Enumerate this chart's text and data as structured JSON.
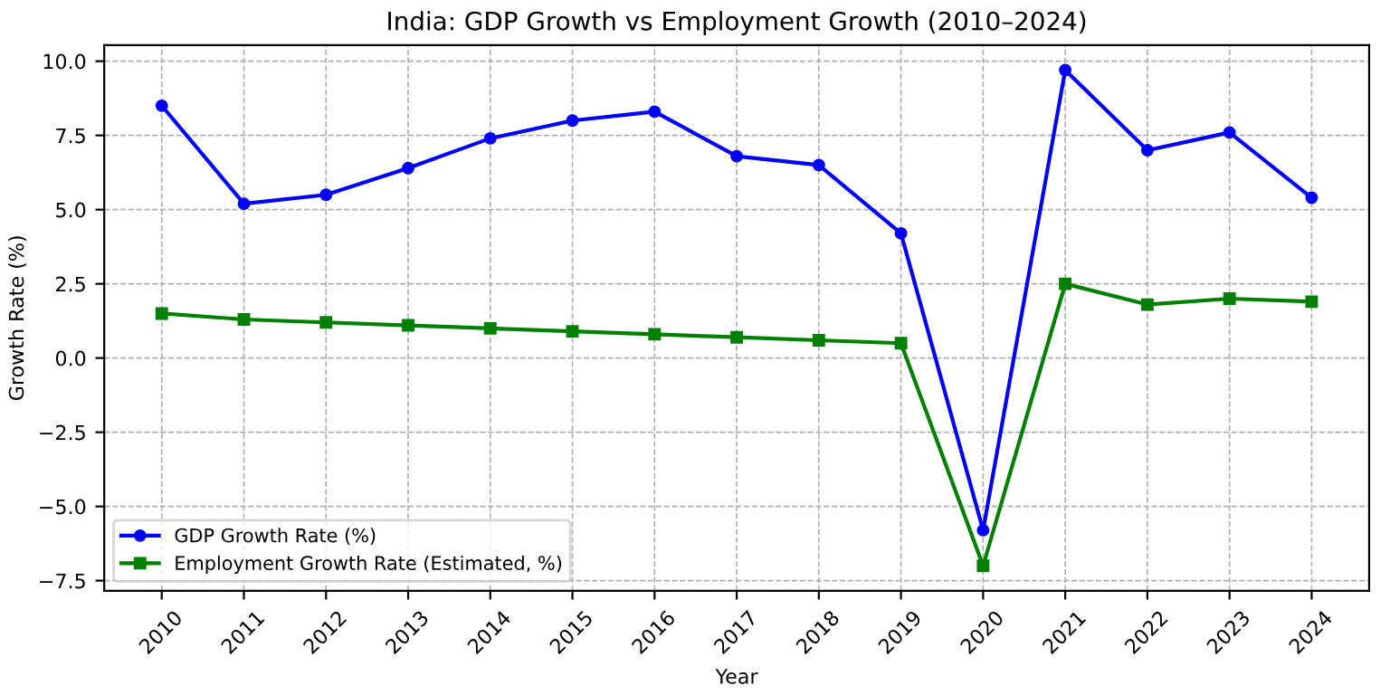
{
  "chart_data": {
    "type": "line",
    "title": "India: GDP Growth vs Employment Growth (2010–2024)",
    "xlabel": "Year",
    "ylabel": "Growth Rate (%)",
    "categories": [
      "2010",
      "2011",
      "2012",
      "2013",
      "2014",
      "2015",
      "2016",
      "2017",
      "2018",
      "2019",
      "2020",
      "2021",
      "2022",
      "2023",
      "2024"
    ],
    "series": [
      {
        "name": "GDP Growth Rate (%)",
        "color": "#0000ff",
        "marker": "circle",
        "values": [
          8.5,
          5.2,
          5.5,
          6.4,
          7.4,
          8.0,
          8.3,
          6.8,
          6.5,
          4.2,
          -5.8,
          9.7,
          7.0,
          7.6,
          5.4
        ]
      },
      {
        "name": "Employment Growth Rate (Estimated, %)",
        "color": "#008000",
        "marker": "square",
        "values": [
          1.5,
          1.3,
          1.2,
          1.1,
          1.0,
          0.9,
          0.8,
          0.7,
          0.6,
          0.5,
          -7.0,
          2.5,
          1.8,
          2.0,
          1.9
        ]
      }
    ],
    "ylim": [
      -7.84,
      10.54
    ],
    "yticks": [
      {
        "value": -7.5,
        "label": "−7.5"
      },
      {
        "value": -5,
        "label": "−5.0"
      },
      {
        "value": -2.5,
        "label": "−2.5"
      },
      {
        "value": 0,
        "label": "0.0"
      },
      {
        "value": 2.5,
        "label": "2.5"
      },
      {
        "value": 5,
        "label": "5.0"
      },
      {
        "value": 7.5,
        "label": "7.5"
      },
      {
        "value": 10,
        "label": "10.0"
      }
    ],
    "grid": true,
    "line_style": "solid",
    "legend": "bottom left"
  }
}
